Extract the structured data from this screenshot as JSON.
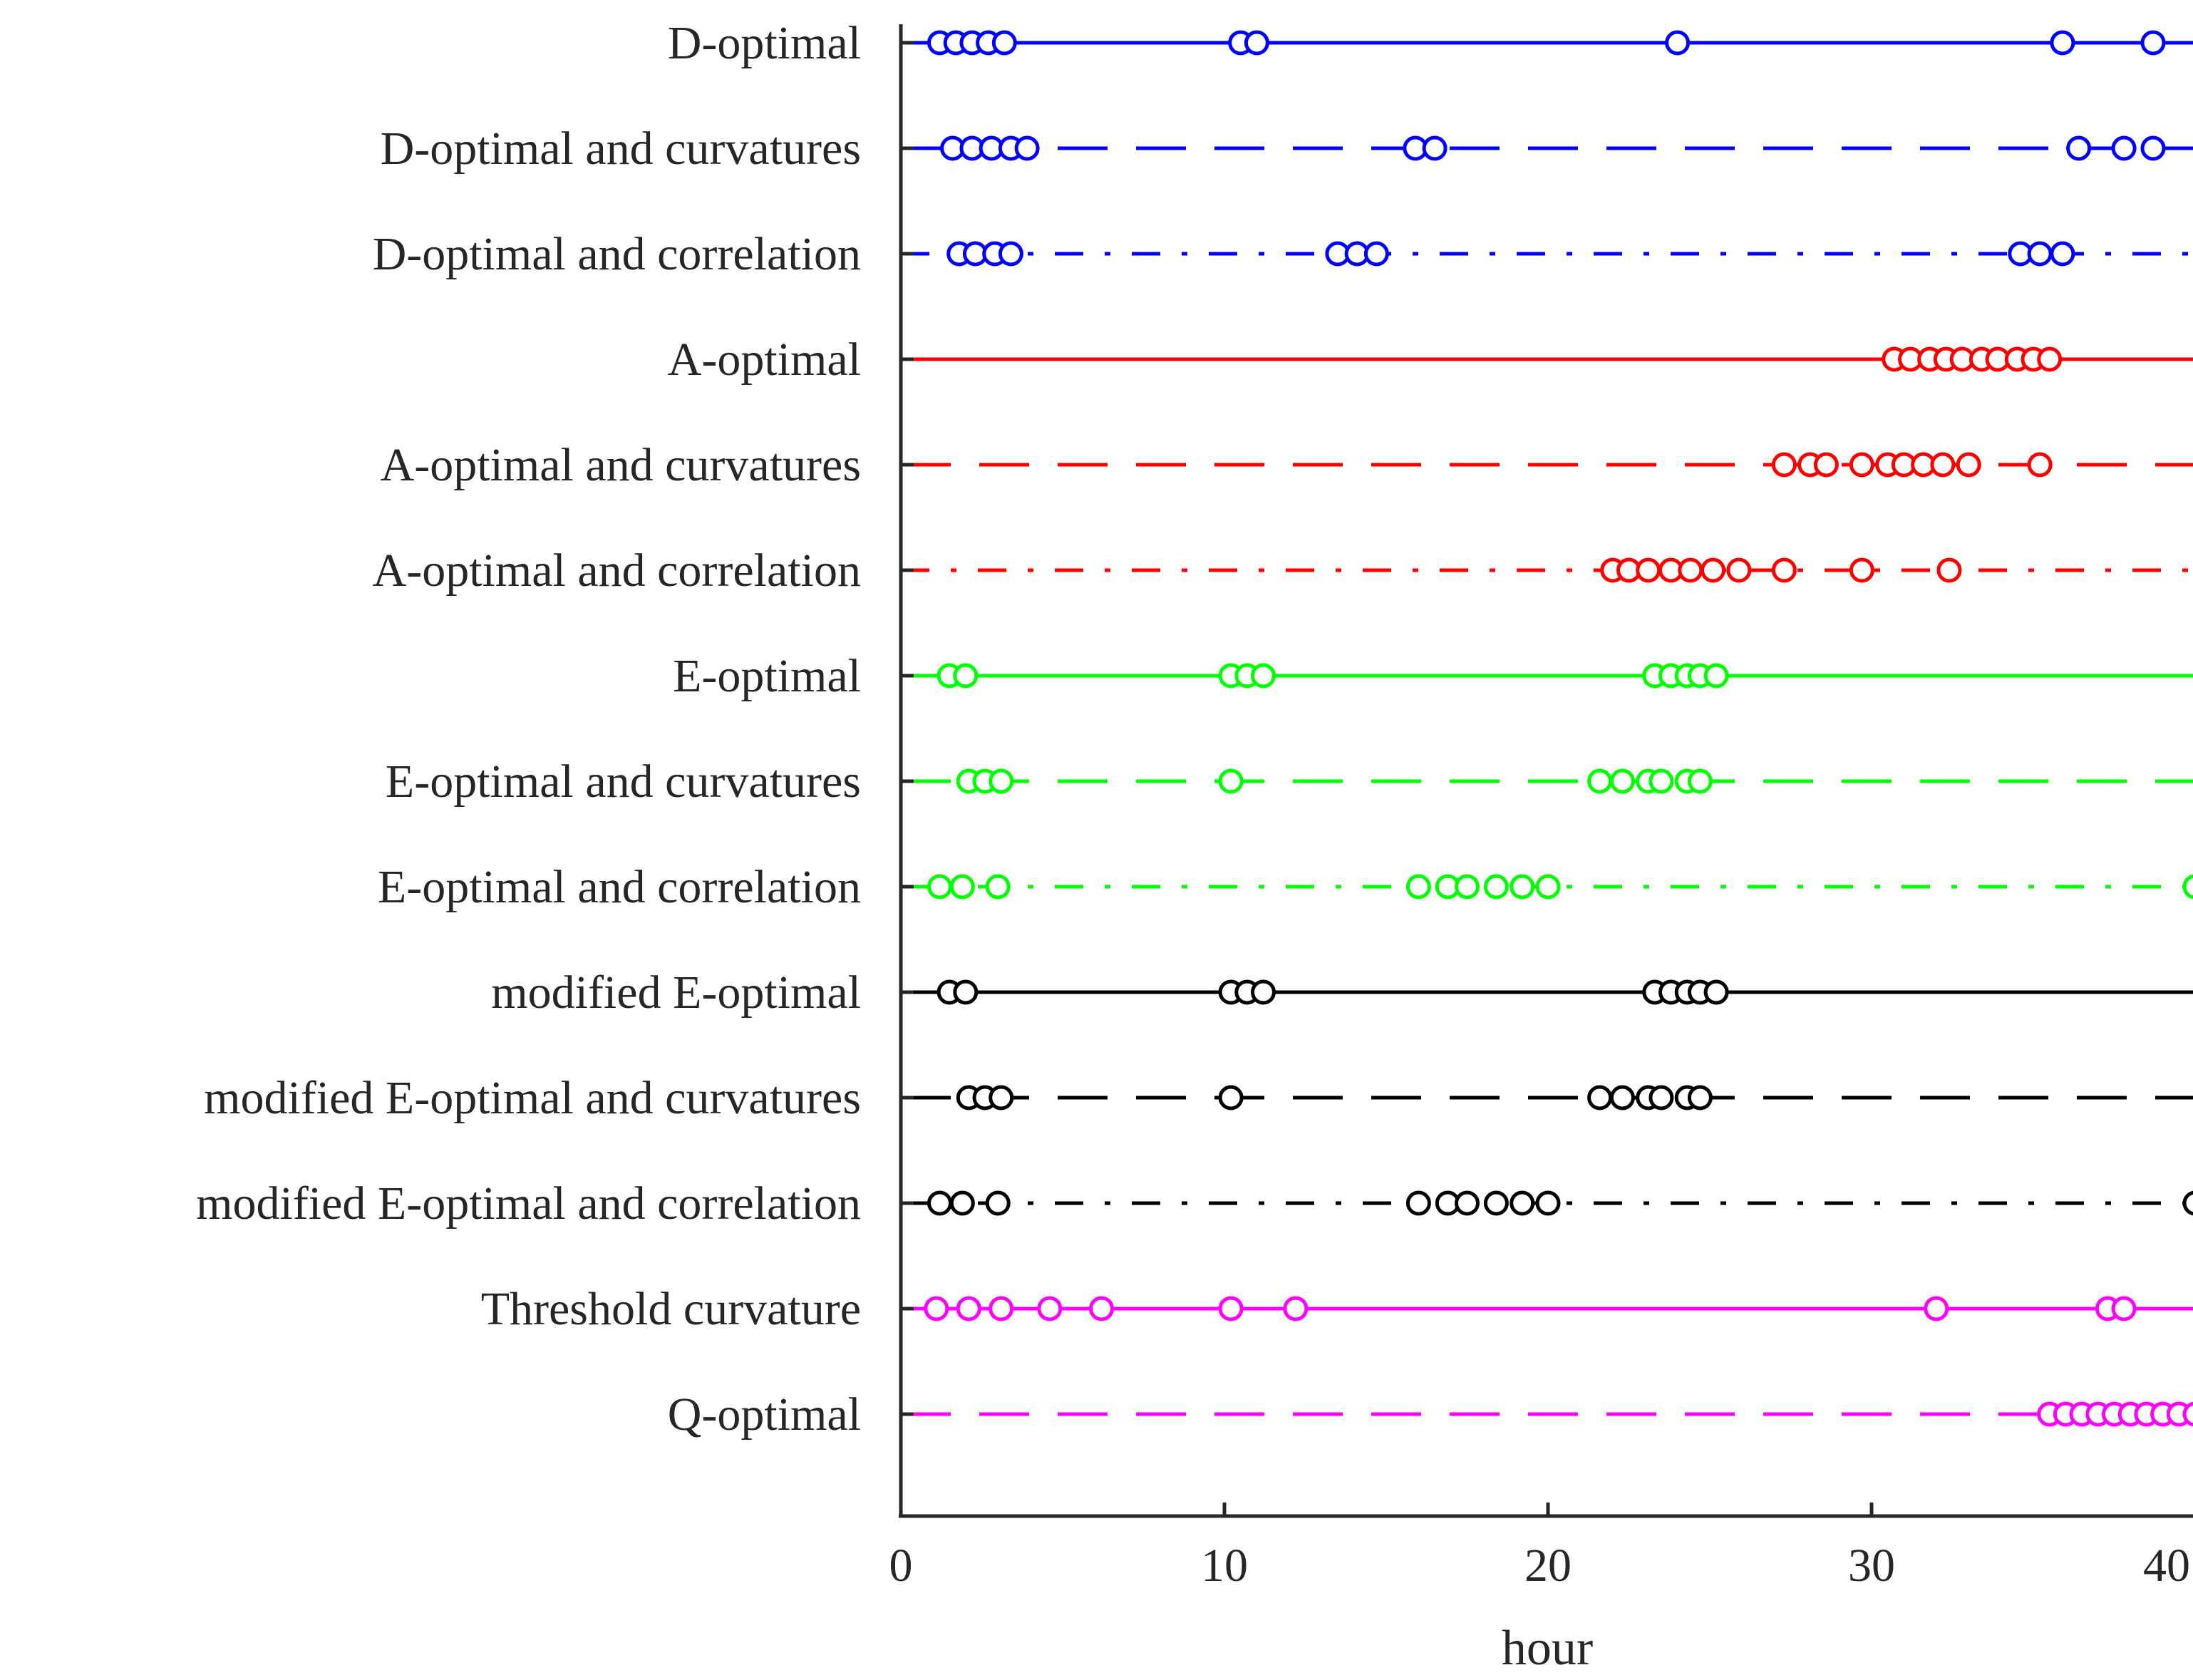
{
  "chart_data": {
    "type": "scatter",
    "title": "",
    "xlabel": "hour",
    "ylabel": "",
    "xlim": [
      0,
      40
    ],
    "xticks": [
      "0",
      "10",
      "20",
      "30",
      "40"
    ],
    "series": [
      {
        "name": "D-optimal",
        "color": "#0000ff",
        "linestyle": "solid",
        "values": [
          1.2,
          1.7,
          2.2,
          2.7,
          3.2,
          10.5,
          11.0,
          24.0,
          35.9,
          38.7
        ]
      },
      {
        "name": "D-optimal and curvatures",
        "color": "#0000ff",
        "linestyle": "dashed",
        "values": [
          1.6,
          2.2,
          2.8,
          3.4,
          3.9,
          15.9,
          16.5,
          36.4,
          37.8,
          38.7
        ]
      },
      {
        "name": "D-optimal and correlation",
        "color": "#0000ff",
        "linestyle": "dashdot",
        "values": [
          1.8,
          2.3,
          2.9,
          3.4,
          13.5,
          14.1,
          14.7,
          34.6,
          35.2,
          35.9
        ]
      },
      {
        "name": "A-optimal",
        "color": "#ff0000",
        "linestyle": "solid",
        "values": [
          30.7,
          31.2,
          31.8,
          32.3,
          32.8,
          33.4,
          33.9,
          34.5,
          35.0,
          35.5
        ]
      },
      {
        "name": "A-optimal and curvatures",
        "color": "#ff0000",
        "linestyle": "dashed",
        "values": [
          27.3,
          28.1,
          28.6,
          29.7,
          30.5,
          31.0,
          31.6,
          32.2,
          33.0,
          35.2
        ]
      },
      {
        "name": "A-optimal and correlation",
        "color": "#ff0000",
        "linestyle": "dashdot",
        "values": [
          22.0,
          22.5,
          23.1,
          23.8,
          24.4,
          25.1,
          25.9,
          27.3,
          29.7,
          32.4
        ]
      },
      {
        "name": "E-optimal",
        "color": "#00ff00",
        "linestyle": "solid",
        "values": [
          1.5,
          2.0,
          10.2,
          10.7,
          11.2,
          23.3,
          23.8,
          24.3,
          24.7,
          25.2
        ]
      },
      {
        "name": "E-optimal and curvatures",
        "color": "#00ff00",
        "linestyle": "dashed",
        "values": [
          2.1,
          2.6,
          3.1,
          10.2,
          21.6,
          22.3,
          23.1,
          23.5,
          24.3,
          24.7
        ]
      },
      {
        "name": "E-optimal and correlation",
        "color": "#00ff00",
        "linestyle": "dashdot",
        "values": [
          1.2,
          1.9,
          3.0,
          16.0,
          16.9,
          17.5,
          18.4,
          19.2,
          20.0,
          40.0
        ]
      },
      {
        "name": "modified E-optimal",
        "color": "#000000",
        "linestyle": "solid",
        "values": [
          1.5,
          2.0,
          10.2,
          10.7,
          11.2,
          23.3,
          23.8,
          24.3,
          24.7,
          25.2
        ]
      },
      {
        "name": "modified E-optimal and curvatures",
        "color": "#000000",
        "linestyle": "dashed",
        "values": [
          2.1,
          2.6,
          3.1,
          10.2,
          21.6,
          22.3,
          23.1,
          23.5,
          24.3,
          24.7
        ]
      },
      {
        "name": "modified E-optimal and correlation",
        "color": "#000000",
        "linestyle": "dashdot",
        "values": [
          1.2,
          1.9,
          3.0,
          16.0,
          16.9,
          17.5,
          18.4,
          19.2,
          20.0,
          40.0
        ]
      },
      {
        "name": "Threshold curvature",
        "color": "#ff00ff",
        "linestyle": "solid",
        "values": [
          1.1,
          2.1,
          3.1,
          4.6,
          6.2,
          10.2,
          12.2,
          32.0,
          37.3,
          37.8
        ]
      },
      {
        "name": "Q-optimal",
        "color": "#ff00ff",
        "linestyle": "dashed",
        "values": [
          35.5,
          36.0,
          36.5,
          37.0,
          37.5,
          38.0,
          38.5,
          39.0,
          39.5,
          40.0
        ]
      }
    ]
  }
}
